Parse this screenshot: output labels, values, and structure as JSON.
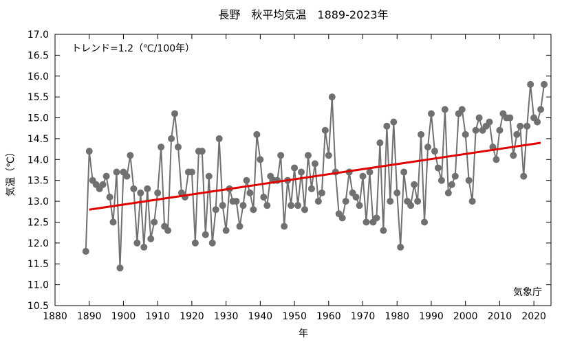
{
  "chart_data": {
    "type": "line",
    "title": "長野　秋平均気温　1889-2023年",
    "xlabel": "年",
    "ylabel": "気温（℃）",
    "xlim": [
      1880,
      2025
    ],
    "ylim": [
      10.5,
      17.0
    ],
    "x_ticks": [
      "1880",
      "1890",
      "1900",
      "1910",
      "1920",
      "1930",
      "1940",
      "1950",
      "1960",
      "1970",
      "1980",
      "1990",
      "2000",
      "2010",
      "2020"
    ],
    "y_ticks": [
      "10.5",
      "11.0",
      "11.5",
      "12.0",
      "12.5",
      "13.0",
      "13.5",
      "14.0",
      "14.5",
      "15.0",
      "15.5",
      "16.0",
      "16.5",
      "17.0"
    ],
    "grid": false,
    "trend_label": "トレンド=1.2（℃/100年）",
    "source_label": "気象庁",
    "colors": {
      "series": "#707070",
      "trend": "#e00000"
    },
    "series": [
      {
        "x": [
          1889,
          1890,
          1891,
          1892,
          1893,
          1894,
          1895,
          1896,
          1897,
          1898,
          1899,
          1900,
          1901,
          1902,
          1903,
          1904,
          1905,
          1906,
          1907,
          1908,
          1909,
          1910,
          1911,
          1912,
          1913,
          1914,
          1915,
          1916,
          1917,
          1918,
          1919,
          1920,
          1921,
          1922,
          1923,
          1924,
          1925,
          1926,
          1927,
          1928,
          1929,
          1930,
          1931,
          1932,
          1933,
          1934,
          1935,
          1936,
          1937,
          1938,
          1939,
          1940,
          1941,
          1942,
          1943,
          1944,
          1945,
          1946,
          1947,
          1948,
          1949,
          1950,
          1951,
          1952,
          1953,
          1954,
          1955,
          1956,
          1957,
          1958,
          1959,
          1960,
          1961,
          1962,
          1963,
          1964,
          1965,
          1966,
          1967,
          1968,
          1969,
          1970,
          1971,
          1972,
          1973,
          1974,
          1975,
          1976,
          1977,
          1978,
          1979,
          1980,
          1981,
          1982,
          1983,
          1984,
          1985,
          1986,
          1987,
          1988,
          1989,
          1990,
          1991,
          1992,
          1993,
          1994,
          1995,
          1996,
          1997,
          1998,
          1999,
          2000,
          2001,
          2002,
          2003,
          2004,
          2005,
          2006,
          2007,
          2008,
          2009,
          2010,
          2011,
          2012,
          2013,
          2014,
          2015,
          2016,
          2017,
          2018,
          2019,
          2020,
          2021,
          2022,
          2023
        ],
        "values": [
          11.8,
          14.2,
          13.5,
          13.4,
          13.3,
          13.4,
          13.6,
          13.1,
          12.5,
          13.7,
          11.4,
          13.7,
          13.6,
          14.1,
          13.3,
          12.0,
          13.2,
          11.9,
          13.3,
          12.1,
          12.5,
          13.2,
          14.3,
          12.4,
          12.3,
          14.5,
          15.1,
          14.3,
          13.2,
          13.1,
          13.7,
          13.7,
          12.0,
          14.2,
          14.2,
          12.2,
          13.6,
          12.0,
          12.8,
          14.5,
          12.9,
          12.3,
          13.3,
          13.0,
          13.0,
          12.4,
          12.9,
          13.5,
          13.2,
          12.8,
          14.6,
          14.0,
          13.1,
          12.9,
          13.6,
          13.5,
          13.5,
          14.1,
          12.4,
          13.5,
          12.9,
          13.8,
          12.9,
          13.7,
          12.8,
          14.1,
          13.3,
          13.9,
          13.0,
          13.2,
          14.7,
          14.1,
          15.5,
          13.7,
          12.7,
          12.6,
          13.0,
          13.7,
          13.2,
          13.1,
          12.9,
          13.6,
          12.5,
          13.7,
          12.5,
          12.6,
          14.4,
          12.3,
          14.8,
          13.0,
          14.9,
          13.2,
          11.9,
          13.7,
          13.0,
          12.9,
          13.4,
          13.0,
          14.6,
          12.5,
          14.3,
          15.1,
          14.2,
          13.8,
          13.5,
          15.2,
          13.2,
          13.4,
          13.6,
          15.1,
          15.2,
          14.6,
          13.5,
          13.0,
          14.7,
          15.0,
          14.7,
          14.8,
          14.9,
          14.3,
          14.0,
          14.7,
          15.1,
          15.0,
          15.0,
          14.1,
          14.6,
          14.8,
          13.6,
          14.8,
          15.8,
          15.0,
          14.9,
          15.2,
          15.8
        ]
      }
    ],
    "trend": {
      "x": [
        1890,
        2022
      ],
      "y": [
        12.8,
        14.4
      ]
    }
  }
}
